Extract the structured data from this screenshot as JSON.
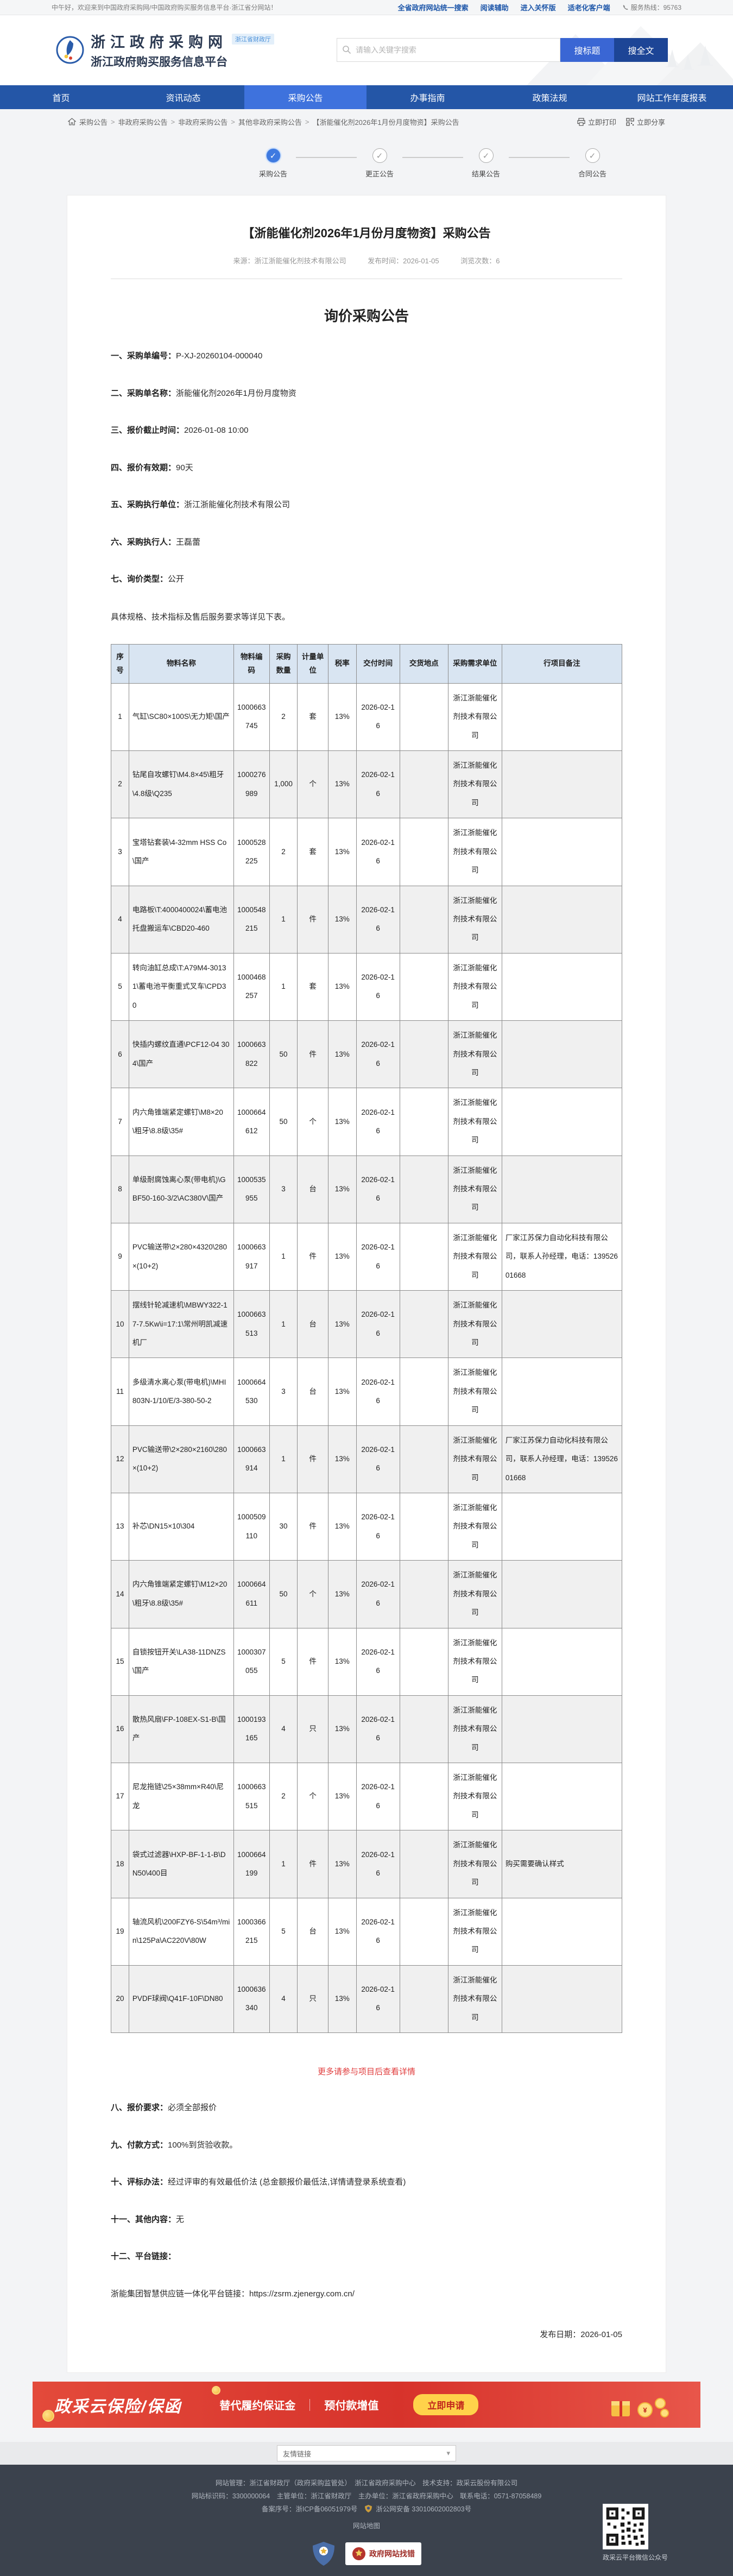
{
  "topbar": {
    "greeting": "中午好，欢迎来到中国政府采购网/中国政府购买服务信息平台·浙江省分网站！",
    "links": [
      "全省政府网站统一搜索",
      "阅读辅助",
      "进入关怀版",
      "适老化客户端"
    ],
    "hotline": "服务热线：95763"
  },
  "header": {
    "site_title": "浙江政府采购网",
    "site_subtitle": "浙江政府购买服务信息平台",
    "badge": "浙江省财政厅",
    "search": {
      "placeholder": "请输入关键字搜索",
      "btn_title": "搜标题",
      "btn_fulltext": "搜全文"
    }
  },
  "nav": {
    "items": [
      {
        "label": "首页",
        "active": false
      },
      {
        "label": "资讯动态",
        "active": false
      },
      {
        "label": "采购公告",
        "active": true
      },
      {
        "label": "办事指南",
        "active": false
      },
      {
        "label": "政策法规",
        "active": false
      },
      {
        "label": "网站工作年度报表",
        "active": false
      }
    ]
  },
  "breadcrumb": {
    "items": [
      "采购公告",
      "非政府采购公告",
      "非政府采购公告",
      "其他非政府采购公告",
      "【浙能催化剂2026年1月份月度物资】采购公告"
    ],
    "print_label": "立即打印",
    "share_label": "立即分享"
  },
  "steps": [
    {
      "label": "采购公告",
      "done": true
    },
    {
      "label": "更正公告",
      "done": false
    },
    {
      "label": "结果公告",
      "done": false
    },
    {
      "label": "合同公告",
      "done": false
    }
  ],
  "article": {
    "title": "【浙能催化剂2026年1月份月度物资】采购公告",
    "meta": {
      "source": "来源：浙江浙能催化剂技术有限公司",
      "publish": "发布时间：2026-01-05",
      "views": "浏览次数：6"
    },
    "doc_title": "询价采购公告",
    "details": [
      {
        "label": "一、采购单编号：",
        "value": "P-XJ-20260104-000040"
      },
      {
        "label": "二、采购单名称：",
        "value": "浙能催化剂2026年1月份月度物资"
      },
      {
        "label": "三、报价截止时间：",
        "value": "2026-01-08 10:00"
      },
      {
        "label": "四、报价有效期：",
        "value": "90天"
      },
      {
        "label": "五、采购执行单位：",
        "value": "浙江浙能催化剂技术有限公司"
      },
      {
        "label": "六、采购执行人：",
        "value": "王磊蕾"
      },
      {
        "label": "七、询价类型：",
        "value": "公开"
      }
    ],
    "table_note": "具体规格、技术指标及售后服务要求等详见下表。",
    "table": {
      "headers": [
        "序号",
        "物料名称",
        "物料编码",
        "采购数量",
        "计量单位",
        "税率",
        "交付时间",
        "交货地点",
        "采购需求单位",
        "行项目备注"
      ],
      "rows": [
        {
          "no": "1",
          "name": "气缸\\SC80×100S\\无力矩\\国产",
          "code": "1000663745",
          "qty": "2",
          "unit": "套",
          "tax": "13%",
          "date": "2026-02-16",
          "place": "",
          "org": "浙江浙能催化剂技术有限公司",
          "remark": ""
        },
        {
          "no": "2",
          "name": "钻尾自攻螺钉\\M4.8×45\\粗牙\\4.8级\\Q235",
          "code": "1000276989",
          "qty": "1,000",
          "unit": "个",
          "tax": "13%",
          "date": "2026-02-16",
          "place": "",
          "org": "浙江浙能催化剂技术有限公司",
          "remark": ""
        },
        {
          "no": "3",
          "name": "宝塔钻套装\\4-32mm HSS Co\\国产",
          "code": "1000528225",
          "qty": "2",
          "unit": "套",
          "tax": "13%",
          "date": "2026-02-16",
          "place": "",
          "org": "浙江浙能催化剂技术有限公司",
          "remark": ""
        },
        {
          "no": "4",
          "name": "电路板\\T:4000400024\\蓄电池托盘搬运车\\CBD20-460",
          "code": "1000548215",
          "qty": "1",
          "unit": "件",
          "tax": "13%",
          "date": "2026-02-16",
          "place": "",
          "org": "浙江浙能催化剂技术有限公司",
          "remark": ""
        },
        {
          "no": "5",
          "name": "转向油缸总成\\T:A79M4-30131\\蓄电池平衡重式叉车\\CPD30",
          "code": "1000468257",
          "qty": "1",
          "unit": "套",
          "tax": "13%",
          "date": "2026-02-16",
          "place": "",
          "org": "浙江浙能催化剂技术有限公司",
          "remark": ""
        },
        {
          "no": "6",
          "name": "快插内螺纹直通\\PCF12-04 304\\国产",
          "code": "1000663822",
          "qty": "50",
          "unit": "件",
          "tax": "13%",
          "date": "2026-02-16",
          "place": "",
          "org": "浙江浙能催化剂技术有限公司",
          "remark": ""
        },
        {
          "no": "7",
          "name": "内六角锥端紧定螺钉\\M8×20\\粗牙\\8.8级\\35#",
          "code": "1000664612",
          "qty": "50",
          "unit": "个",
          "tax": "13%",
          "date": "2026-02-16",
          "place": "",
          "org": "浙江浙能催化剂技术有限公司",
          "remark": ""
        },
        {
          "no": "8",
          "name": "单级耐腐蚀离心泵(带电机)\\GBF50-160-3/2\\AC380V\\国产",
          "code": "1000535955",
          "qty": "3",
          "unit": "台",
          "tax": "13%",
          "date": "2026-02-16",
          "place": "",
          "org": "浙江浙能催化剂技术有限公司",
          "remark": ""
        },
        {
          "no": "9",
          "name": "PVC输送带\\2×280×4320\\280×(10+2)",
          "code": "1000663917",
          "qty": "1",
          "unit": "件",
          "tax": "13%",
          "date": "2026-02-16",
          "place": "",
          "org": "浙江浙能催化剂技术有限公司",
          "remark": "厂家江苏保力自动化科技有限公司，联系人孙经理，电话：13952601668"
        },
        {
          "no": "10",
          "name": "摆线针轮减速机\\MBWY322-17-7.5Kw\\i=17:1\\常州明凯减速机厂",
          "code": "1000663513",
          "qty": "1",
          "unit": "台",
          "tax": "13%",
          "date": "2026-02-16",
          "place": "",
          "org": "浙江浙能催化剂技术有限公司",
          "remark": ""
        },
        {
          "no": "11",
          "name": "多级清水离心泵(带电机)\\MHI803N-1/10/E/3-380-50-2",
          "code": "1000664530",
          "qty": "3",
          "unit": "台",
          "tax": "13%",
          "date": "2026-02-16",
          "place": "",
          "org": "浙江浙能催化剂技术有限公司",
          "remark": ""
        },
        {
          "no": "12",
          "name": "PVC输送带\\2×280×2160\\280×(10+2)",
          "code": "1000663914",
          "qty": "1",
          "unit": "件",
          "tax": "13%",
          "date": "2026-02-16",
          "place": "",
          "org": "浙江浙能催化剂技术有限公司",
          "remark": "厂家江苏保力自动化科技有限公司，联系人孙经理，电话：13952601668"
        },
        {
          "no": "13",
          "name": "补芯\\DN15×10\\304",
          "code": "1000509110",
          "qty": "30",
          "unit": "件",
          "tax": "13%",
          "date": "2026-02-16",
          "place": "",
          "org": "浙江浙能催化剂技术有限公司",
          "remark": ""
        },
        {
          "no": "14",
          "name": "内六角锥端紧定螺钉\\M12×20\\粗牙\\8.8级\\35#",
          "code": "1000664611",
          "qty": "50",
          "unit": "个",
          "tax": "13%",
          "date": "2026-02-16",
          "place": "",
          "org": "浙江浙能催化剂技术有限公司",
          "remark": ""
        },
        {
          "no": "15",
          "name": "自锁按钮开关\\LA38-11DNZS\\国产",
          "code": "1000307055",
          "qty": "5",
          "unit": "件",
          "tax": "13%",
          "date": "2026-02-16",
          "place": "",
          "org": "浙江浙能催化剂技术有限公司",
          "remark": ""
        },
        {
          "no": "16",
          "name": "散热风扇\\FP-108EX-S1-B\\国产",
          "code": "1000193165",
          "qty": "4",
          "unit": "只",
          "tax": "13%",
          "date": "2026-02-16",
          "place": "",
          "org": "浙江浙能催化剂技术有限公司",
          "remark": ""
        },
        {
          "no": "17",
          "name": "尼龙拖链\\25×38mm×R40\\尼龙",
          "code": "1000663515",
          "qty": "2",
          "unit": "个",
          "tax": "13%",
          "date": "2026-02-16",
          "place": "",
          "org": "浙江浙能催化剂技术有限公司",
          "remark": ""
        },
        {
          "no": "18",
          "name": "袋式过滤器\\HXP-BF-1-1-B\\DN50\\400目",
          "code": "1000664199",
          "qty": "1",
          "unit": "件",
          "tax": "13%",
          "date": "2026-02-16",
          "place": "",
          "org": "浙江浙能催化剂技术有限公司",
          "remark": "购买需要确认样式"
        },
        {
          "no": "19",
          "name": "轴流风机\\200FZY6-S\\54m³/min\\125Pa\\AC220V\\80W",
          "code": "1000366215",
          "qty": "5",
          "unit": "台",
          "tax": "13%",
          "date": "2026-02-16",
          "place": "",
          "org": "浙江浙能催化剂技术有限公司",
          "remark": ""
        },
        {
          "no": "20",
          "name": "PVDF球阀\\Q41F-10F\\DN80",
          "code": "1000636340",
          "qty": "4",
          "unit": "只",
          "tax": "13%",
          "date": "2026-02-16",
          "place": "",
          "org": "浙江浙能催化剂技术有限公司",
          "remark": ""
        }
      ]
    },
    "more_link": "更多请参与项目后查看详情",
    "sections": [
      {
        "label": "八、报价要求：",
        "value": "必须全部报价"
      },
      {
        "label": "九、付款方式：",
        "value": "100%到货验收款。"
      },
      {
        "label": "十、评标办法：",
        "value": "经过评审的有效最低价法 (总金额报价最低法,详情请登录系统查看)"
      },
      {
        "label": "十一、其他内容：",
        "value": "无"
      },
      {
        "label": "十二、平台链接：",
        "value": ""
      }
    ],
    "platform_link": "浙能集团智慧供应链一体化平台链接：https://zsrm.zjenergy.com.cn/",
    "publish_date_line": "发布日期：2026-01-05"
  },
  "ad": {
    "title": "政采云保险/保函",
    "features": [
      "替代履约保证金",
      "预付款增值"
    ],
    "button": "立即申请"
  },
  "friend_links": {
    "label": "友情链接"
  },
  "footer": {
    "line1": "网站管理：浙江省财政厅（政府采购监管处）　浙江省政府采购中心　技术支持：政采云股份有限公司",
    "line2": "网站标识码：3300000064　主管单位：浙江省财政厅　主办单位：浙江省政府采购中心　联系电话：0571-87058489",
    "line3a": "备案序号：浙ICP备06051979号",
    "line3b": "浙公网安备 33010602002803号",
    "sitemap": "网站地图",
    "badge_text": "政府网站找错",
    "qr_caption": "政采云平台微信公众号"
  },
  "colors": {
    "nav_blue": "#2456a7",
    "active_blue": "#3e72dd",
    "banner_red": "#d7332b",
    "link_red": "#e03c3c",
    "table_header_bg": "#d9e5f2",
    "btn_blue": "#3a66d4",
    "btn_navy": "#1d4596"
  }
}
